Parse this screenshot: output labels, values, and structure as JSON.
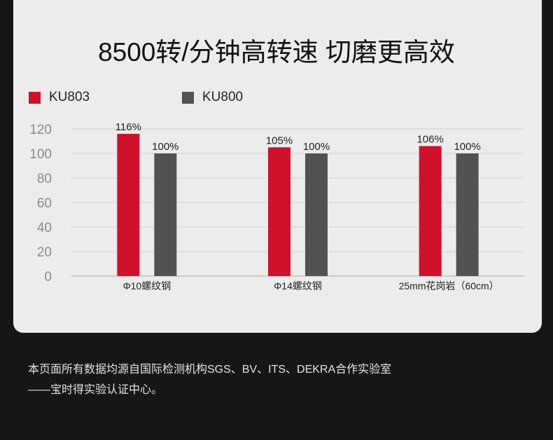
{
  "title": "8500转/分钟高转速 切磨更高效",
  "chart_data": {
    "type": "bar",
    "categories": [
      "Φ10螺纹钢",
      "Φ14螺纹钢",
      "25mm花岗岩（60cm）"
    ],
    "series": [
      {
        "name": "KU803",
        "color": "#d0112b",
        "values": [
          116,
          105,
          106
        ],
        "labels": [
          "116%",
          "105%",
          "106%"
        ]
      },
      {
        "name": "KU800",
        "color": "#525252",
        "values": [
          100,
          100,
          100
        ],
        "labels": [
          "100%",
          "100%",
          "100%"
        ]
      }
    ],
    "ylim": [
      0,
      120
    ],
    "yticks": [
      0,
      20,
      40,
      60,
      80,
      100,
      120
    ],
    "grid": true,
    "legend": "top-left"
  },
  "footer": {
    "line1": "本页面所有数据均源自国际检测机构SGS、BV、ITS、DEKRA合作实验室",
    "line2": "——宝时得实验认证中心。"
  }
}
